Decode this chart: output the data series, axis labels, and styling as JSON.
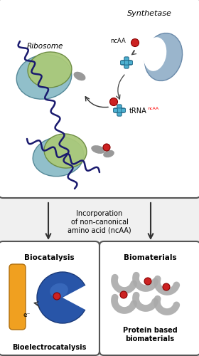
{
  "bg_color": "#f0f0f0",
  "top_box_color": "#ffffff",
  "top_box_border": "#555555",
  "bottom_left_box_color": "#ffffff",
  "bottom_right_box_color": "#ffffff",
  "ribosome_green": "#aac97a",
  "ribosome_blue": "#85b8c5",
  "synthetase_blue": "#9ab5cc",
  "trna_blue": "#4db0d0",
  "red_dot": "#cc2222",
  "wave_color": "#1a1a6e",
  "gray_protein": "#aaaaaa",
  "enzyme_blue": "#2855a8",
  "electrode_orange": "#f0a020",
  "arrow_color": "#333333",
  "title_top": "Synthetase",
  "label_ribosome": "Ribosome",
  "label_ncaa": "ncAA",
  "label_trna": "tRNA",
  "label_trna_sup": "ncAA",
  "label_incorp": "Incorporation\nof non-canonical\namino acid (ncAA)",
  "label_biocatalysis": "Biocatalysis",
  "label_biomaterials": "Biomaterials",
  "label_bioelectro": "Bioelectrocatalysis",
  "label_protein_based": "Protein based\nbiomaterials",
  "label_electron": "e⁻"
}
